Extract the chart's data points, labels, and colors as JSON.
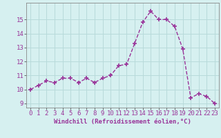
{
  "x": [
    0,
    1,
    2,
    3,
    4,
    5,
    6,
    7,
    8,
    9,
    10,
    11,
    12,
    13,
    14,
    15,
    16,
    17,
    18,
    19,
    20,
    21,
    22,
    23
  ],
  "y": [
    10.0,
    10.3,
    10.6,
    10.5,
    10.8,
    10.8,
    10.5,
    10.8,
    10.5,
    10.8,
    11.0,
    11.7,
    11.8,
    13.3,
    14.8,
    15.6,
    15.0,
    15.0,
    14.5,
    12.9,
    9.4,
    9.7,
    9.5,
    9.0
  ],
  "line_color": "#993399",
  "marker": "+",
  "marker_size": 4,
  "line_width": 1.0,
  "xlabel": "Windchill (Refroidissement éolien,°C)",
  "xlabel_fontsize": 6.5,
  "ylabel_ticks": [
    9,
    10,
    11,
    12,
    13,
    14,
    15
  ],
  "xlim": [
    -0.5,
    23.5
  ],
  "ylim": [
    8.7,
    16.2
  ],
  "background_color": "#d6f0f0",
  "grid_color": "#b8dada",
  "tick_fontsize": 6.5,
  "spine_color": "#888888"
}
